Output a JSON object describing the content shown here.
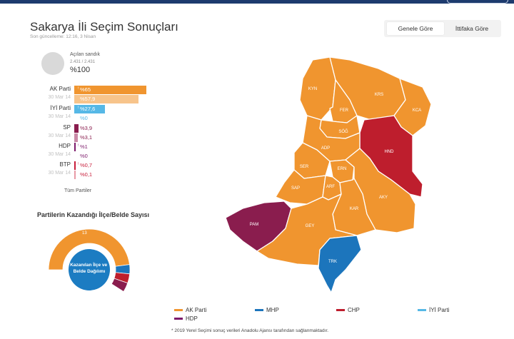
{
  "header": {
    "title": "Sakarya İli Seçim Sonuçları",
    "updated": "Son güncelleme: 12:16, 3 Nisan"
  },
  "tabs": [
    {
      "label": "Genele Göre",
      "active": true
    },
    {
      "label": "İttifaka Göre",
      "active": false
    }
  ],
  "ballot": {
    "label": "Açılan sandık",
    "count": "2.431 / 2.431",
    "percent": "%100"
  },
  "colors": {
    "akp": "#f0952f",
    "akp_prev": "#f7c48b",
    "iyi": "#56b8e6",
    "iyi_prev": "#b9e1f5",
    "sp": "#8a1d4e",
    "hdp": "#7d1a6b",
    "btp": "#c81d3a",
    "mhp": "#1c75bc",
    "chp": "#be1e2d",
    "gray": "#d9d9d9"
  },
  "chart_data": [
    {
      "type": "bar",
      "parties": [
        {
          "name": "AK Parti",
          "current_label": "%65",
          "current": 65,
          "prev_label": "30 Mar 14",
          "prev_pct_label": "%57,9",
          "prev": 57.9,
          "color": "#f0952f",
          "prev_color": "#f7c48b",
          "arrow": "↑"
        },
        {
          "name": "İYİ Parti",
          "current_label": "%27,6",
          "current": 27.6,
          "prev_label": "30 Mar 14",
          "prev_pct_label": "%0",
          "prev": 0,
          "color": "#56b8e6",
          "prev_color": "#b9e1f5",
          "arrow": "↑"
        },
        {
          "name": "SP",
          "current_label": "%3,9",
          "current": 3.9,
          "prev_label": "30 Mar 14",
          "prev_pct_label": "%3,1",
          "prev": 3.1,
          "color": "#8a1d4e",
          "prev_color": "#c98aa7",
          "arrow": "↑"
        },
        {
          "name": "HDP",
          "current_label": "%1",
          "current": 1,
          "prev_label": "30 Mar 14",
          "prev_pct_label": "%0",
          "prev": 0,
          "color": "#7d1a6b",
          "prev_color": "#c09ab7",
          "arrow": "↑"
        },
        {
          "name": "BTP",
          "current_label": "%0,7",
          "current": 0.7,
          "prev_label": "30 Mar 14",
          "prev_pct_label": "%0,1",
          "prev": 0.1,
          "color": "#c81d3a",
          "prev_color": "#e89aa6",
          "arrow": "↑"
        }
      ],
      "max": 65
    },
    {
      "type": "pie",
      "title": "Partilerin Kazandığı İlçe/Belde Sayısı",
      "center_label": "Kazanılan İlçe ve Belde Dağılımı",
      "slices": [
        {
          "label": "13",
          "value": 13,
          "color": "#f0952f"
        },
        {
          "value": 1,
          "color": "#1c75bc"
        },
        {
          "value": 1,
          "color": "#be1e2d"
        },
        {
          "value": 1,
          "color": "#8a1d4e"
        }
      ]
    }
  ],
  "all_parties": "Tüm Partiler",
  "map": {
    "districts": [
      {
        "code": "KYN",
        "party": "akp"
      },
      {
        "code": "KRS",
        "party": "akp"
      },
      {
        "code": "KCA",
        "party": "akp"
      },
      {
        "code": "FER",
        "party": "akp"
      },
      {
        "code": "SÖĞ",
        "party": "akp"
      },
      {
        "code": "HND",
        "party": "chp"
      },
      {
        "code": "ADP",
        "party": "akp"
      },
      {
        "code": "SER",
        "party": "akp"
      },
      {
        "code": "ERN",
        "party": "akp"
      },
      {
        "code": "SAP",
        "party": "akp"
      },
      {
        "code": "ARF",
        "party": "akp"
      },
      {
        "code": "AKY",
        "party": "akp"
      },
      {
        "code": "KAR",
        "party": "akp"
      },
      {
        "code": "PAM",
        "party": "sp"
      },
      {
        "code": "GEY",
        "party": "akp"
      },
      {
        "code": "TRK",
        "party": "mhp"
      }
    ]
  },
  "legend": [
    {
      "label": "AK Parti",
      "color": "#f0952f"
    },
    {
      "label": "MHP",
      "color": "#1c75bc"
    },
    {
      "label": "CHP",
      "color": "#be1e2d"
    },
    {
      "label": "İYİ Parti",
      "color": "#56b8e6"
    },
    {
      "label": "HDP",
      "color": "#7d1a6b"
    }
  ],
  "footnote": "* 2019 Yerel Seçimi sonuç verileri Anadolu Ajansı tarafından sağlanmaktadır."
}
